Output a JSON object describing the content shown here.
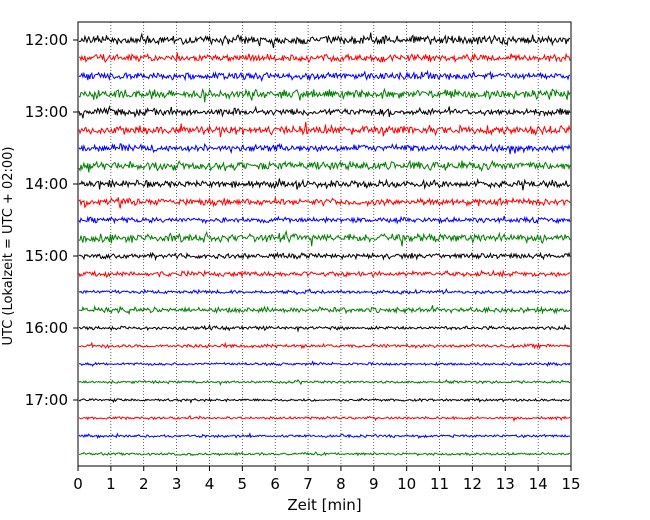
{
  "chart_data": {
    "type": "line",
    "subtype": "helicorder",
    "title": "",
    "xlabel": "Zeit  [min]",
    "ylabel": "UTC (Lokalzeit = UTC + 02:00)",
    "xlim": [
      0,
      15
    ],
    "x_ticks": [
      0,
      1,
      2,
      3,
      4,
      5,
      6,
      7,
      8,
      9,
      10,
      11,
      12,
      13,
      14,
      15
    ],
    "y_tick_labels": [
      "12:00",
      "13:00",
      "14:00",
      "15:00",
      "16:00",
      "17:00"
    ],
    "trace_start_times": [
      "12:00",
      "12:15",
      "12:30",
      "12:45",
      "13:00",
      "13:15",
      "13:30",
      "13:45",
      "14:00",
      "14:15",
      "14:30",
      "14:45",
      "15:00",
      "15:15",
      "15:30",
      "15:45",
      "16:00",
      "16:15",
      "16:30",
      "16:45",
      "17:00",
      "17:15",
      "17:30",
      "17:45"
    ],
    "trace_colors": [
      "#000000",
      "#ff0000",
      "#0000ff",
      "#008000"
    ],
    "trace_amplitude": [
      5,
      4,
      4,
      5,
      4,
      5,
      4,
      5,
      4,
      4,
      3,
      5,
      3,
      3,
      2,
      3,
      2,
      2,
      1.5,
      1.5,
      1.5,
      1.5,
      1.5,
      1.5
    ],
    "x_grid": "dotted",
    "legend": "none"
  }
}
